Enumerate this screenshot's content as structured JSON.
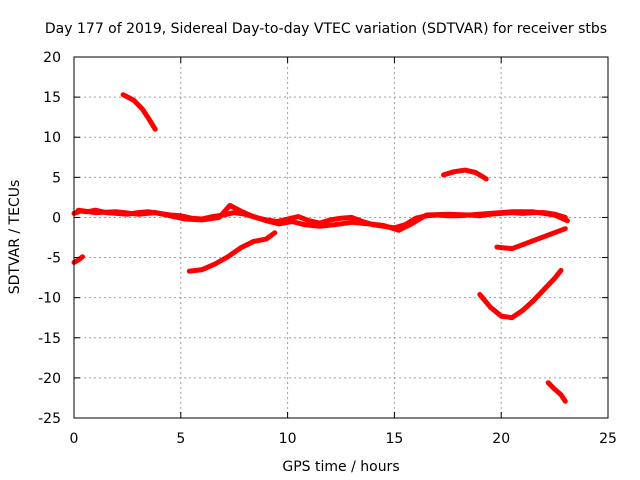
{
  "chart_data": {
    "type": "line",
    "title": "Day 177 of 2019, Sidereal Day-to-day VTEC variation (SDTVAR) for receiver stbs",
    "xlabel": "GPS time / hours",
    "ylabel": "SDTVAR / TECUs",
    "xlim": [
      0,
      25
    ],
    "ylim": [
      -25,
      20
    ],
    "xticks": [
      0,
      5,
      10,
      15,
      20,
      25
    ],
    "yticks": [
      -25,
      -20,
      -15,
      -10,
      -5,
      0,
      5,
      10,
      15,
      20
    ],
    "grid": true,
    "legend": "none",
    "series_color": "#ff0000",
    "series": [
      {
        "name": "arc-main",
        "x": [
          0.0,
          0.3,
          0.6,
          1.0,
          1.5,
          2.0,
          2.5,
          3.0,
          3.5,
          4.0,
          4.5,
          5.0,
          5.5,
          6.0,
          6.5,
          7.0,
          7.5,
          8.0,
          8.5,
          9.0,
          9.5,
          10.0,
          10.5,
          11.0,
          11.5,
          12.0,
          12.5,
          13.0,
          13.5,
          14.0,
          14.5,
          15.0,
          15.5,
          16.0,
          16.5,
          17.0,
          17.5,
          18.0,
          18.5,
          19.0,
          19.5,
          20.0,
          20.5,
          21.0,
          21.5,
          22.0,
          22.5,
          23.0
        ],
        "y": [
          0.5,
          0.8,
          0.7,
          0.9,
          0.6,
          0.5,
          0.4,
          0.6,
          0.7,
          0.5,
          0.3,
          0.2,
          -0.1,
          -0.2,
          0.1,
          0.3,
          0.6,
          0.4,
          0.0,
          -0.3,
          -0.5,
          -0.2,
          0.1,
          -0.4,
          -0.7,
          -0.3,
          -0.1,
          0.0,
          -0.5,
          -0.9,
          -1.1,
          -1.3,
          -0.9,
          -0.1,
          0.2,
          0.3,
          0.2,
          0.2,
          0.3,
          0.2,
          0.4,
          0.5,
          0.6,
          0.5,
          0.6,
          0.6,
          0.4,
          0.0
        ]
      },
      {
        "name": "arc-main-b",
        "x": [
          0.2,
          1.0,
          2.0,
          3.0,
          3.8,
          4.5,
          5.2,
          6.0,
          6.8,
          7.3,
          7.8,
          8.3,
          9.0,
          9.6,
          10.2,
          10.8,
          11.5,
          12.2,
          13.0,
          13.8,
          14.5,
          15.2,
          15.8,
          16.5,
          17.5,
          18.5,
          19.5,
          20.5,
          21.5,
          22.5,
          23.1
        ],
        "y": [
          0.9,
          0.6,
          0.7,
          0.4,
          0.6,
          0.2,
          -0.2,
          -0.3,
          0.0,
          1.5,
          0.8,
          0.2,
          -0.4,
          -0.8,
          -0.5,
          -0.9,
          -1.1,
          -0.9,
          -0.6,
          -0.8,
          -1.0,
          -1.6,
          -0.8,
          0.3,
          0.4,
          0.3,
          0.5,
          0.7,
          0.7,
          0.3,
          -0.4
        ]
      },
      {
        "name": "arc-a",
        "x": [
          0.0,
          0.2,
          0.4
        ],
        "y": [
          -5.6,
          -5.3,
          -4.9
        ]
      },
      {
        "name": "arc-b",
        "x": [
          2.3,
          2.8,
          3.2,
          3.5,
          3.8
        ],
        "y": [
          15.3,
          14.6,
          13.5,
          12.3,
          11.0
        ]
      },
      {
        "name": "arc-c",
        "x": [
          5.4,
          6.0,
          6.6,
          7.2,
          7.8,
          8.4,
          9.0,
          9.4
        ],
        "y": [
          -6.7,
          -6.5,
          -5.8,
          -4.9,
          -3.8,
          -3.0,
          -2.7,
          -1.9
        ]
      },
      {
        "name": "arc-d",
        "x": [
          17.3,
          17.8,
          18.3,
          18.8,
          19.3
        ],
        "y": [
          5.3,
          5.7,
          5.9,
          5.6,
          4.8
        ]
      },
      {
        "name": "arc-e",
        "x": [
          19.0,
          19.5,
          20.0,
          20.5,
          21.0,
          21.5,
          22.0,
          22.5,
          22.8
        ],
        "y": [
          -9.6,
          -11.2,
          -12.3,
          -12.5,
          -11.6,
          -10.4,
          -9.0,
          -7.6,
          -6.6
        ]
      },
      {
        "name": "arc-f",
        "x": [
          19.8,
          20.5,
          21.0,
          21.5,
          22.0,
          22.5,
          23.0
        ],
        "y": [
          -3.7,
          -3.9,
          -3.4,
          -2.9,
          -2.4,
          -1.9,
          -1.4
        ]
      },
      {
        "name": "arc-g",
        "x": [
          22.2,
          22.5,
          22.8,
          23.0
        ],
        "y": [
          -20.6,
          -21.4,
          -22.1,
          -22.9
        ]
      }
    ]
  }
}
